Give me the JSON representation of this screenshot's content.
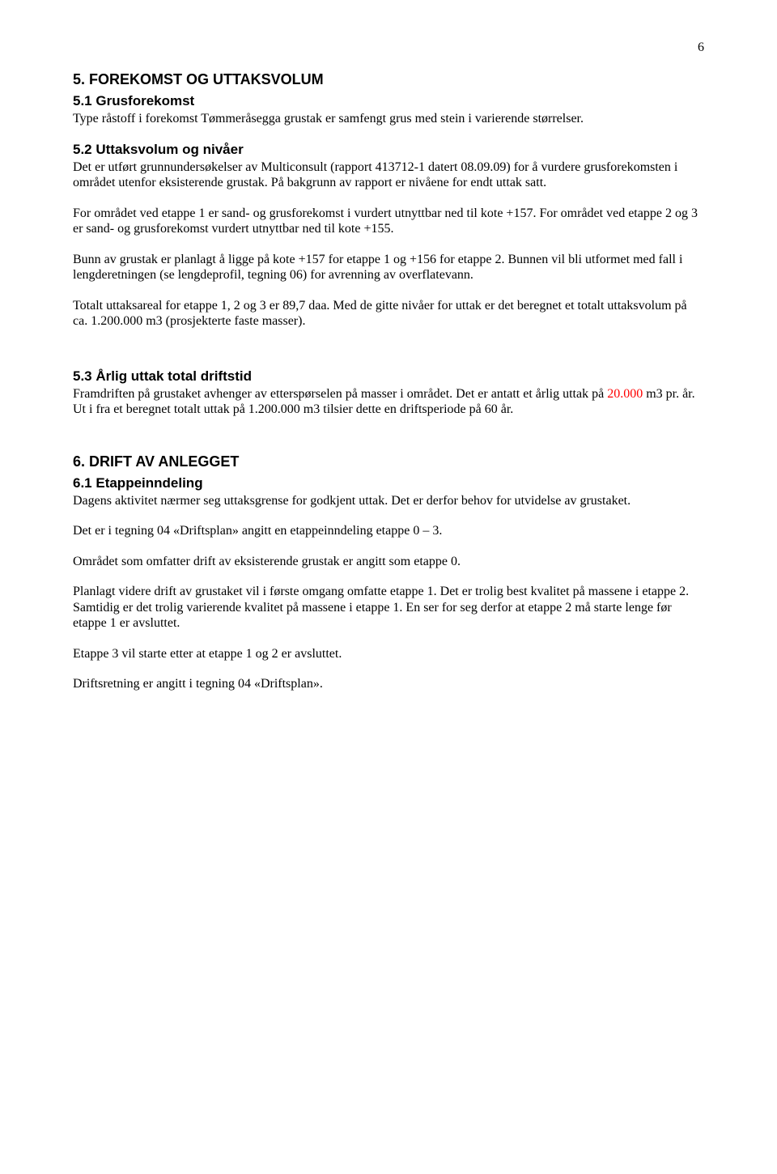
{
  "page_number": "6",
  "sections": {
    "s5_title": "5.    FOREKOMST OG UTTAKSVOLUM",
    "s51_title": "5.1   Grusforekomst",
    "s51_p1": "Type råstoff i forekomst Tømmeråsegga grustak er samfengt grus med stein i varierende størrelser.",
    "s52_title": "5.2   Uttaksvolum og nivåer",
    "s52_p1": "Det er utført grunnundersøkelser av Multiconsult (rapport 413712-1 datert 08.09.09) for å vurdere grusforekomsten i området utenfor eksisterende grustak. På bakgrunn av rapport er nivåene for endt uttak satt.",
    "s52_p2": "For området ved etappe 1 er sand- og grusforekomst i vurdert utnyttbar ned til kote +157. For området ved etappe 2 og 3 er sand- og grusforekomst vurdert utnyttbar ned til kote +155.",
    "s52_p3": "Bunn av grustak er planlagt å ligge på kote +157 for etappe 1 og +156 for etappe 2. Bunnen vil bli utformet med fall i lengderetningen (se lengdeprofil, tegning 06) for avrenning av overflatevann.",
    "s52_p4": "Totalt uttaksareal for etappe 1, 2 og 3 er 89,7 daa. Med de gitte nivåer for uttak er det beregnet et totalt uttaksvolum på ca. 1.200.000 m3 (prosjekterte faste masser).",
    "s53_title": "5.3   Årlig uttak total driftstid",
    "s53_p1_a": "Framdriften på grustaket avhenger av etterspørselen på masser i området. Det er antatt et årlig uttak på ",
    "s53_p1_red": "20.000",
    "s53_p1_b": " m3 pr. år. Ut i fra et beregnet totalt uttak på 1.200.000 m3 tilsier dette en driftsperiode på 60 år.",
    "s6_title": "6.    DRIFT AV ANLEGGET",
    "s61_title": "6.1   Etappeinndeling",
    "s61_p1": "Dagens aktivitet nærmer seg uttaksgrense for godkjent uttak. Det er derfor behov for utvidelse av grustaket.",
    "s61_p2": "Det er i tegning 04 «Driftsplan» angitt en etappeinndeling etappe 0 – 3.",
    "s61_p3": "Området som omfatter drift av eksisterende grustak er angitt som etappe 0.",
    "s61_p4": "Planlagt videre drift av grustaket vil i første omgang omfatte etappe 1. Det er trolig best kvalitet på massene i etappe 2. Samtidig er det trolig varierende kvalitet på massene i etappe 1. En ser for seg derfor at etappe 2 må starte lenge før etappe 1 er avsluttet.",
    "s61_p5": "Etappe 3 vil starte etter at etappe 1 og 2 er avsluttet.",
    "s61_p6": "Driftsretning er angitt i tegning 04 «Driftsplan»."
  }
}
